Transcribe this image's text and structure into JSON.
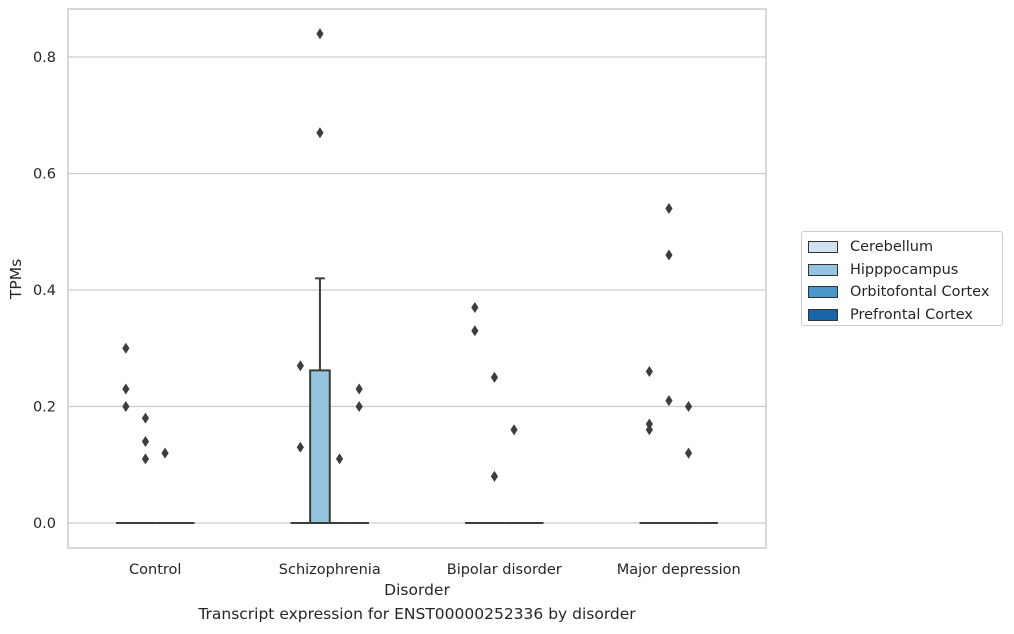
{
  "chart_data": {
    "type": "box",
    "title": "Transcript expression for ENST00000252336 by disorder",
    "xlabel": "Disorder",
    "ylabel": "TPMs",
    "ylim": [
      -0.04,
      0.885
    ],
    "yticks": [
      "0.0",
      "0.2",
      "0.4",
      "0.6",
      "0.8"
    ],
    "ytick_values": [
      0.0,
      0.2,
      0.4,
      0.6,
      0.8
    ],
    "categories": [
      "Control",
      "Schizophrenia",
      "Bipolar disorder",
      "Major depression"
    ],
    "grid": "horizontal",
    "legend_position": "right",
    "series": [
      {
        "name": "Cerebellum",
        "color": "#d0e1f2"
      },
      {
        "name": "Hipppocampus",
        "color": "#94c4df"
      },
      {
        "name": "Orbitofontal Cortex",
        "color": "#4a98c9"
      },
      {
        "name": "Prefrontal Cortex",
        "color": "#1764ab"
      }
    ],
    "boxes": [
      {
        "category": "Control",
        "series": "Cerebellum",
        "q1": 0,
        "median": 0,
        "q3": 0,
        "whisker_low": 0,
        "whisker_high": 0,
        "outliers": [
          0.3,
          0.23,
          0.2
        ]
      },
      {
        "category": "Control",
        "series": "Hipppocampus",
        "q1": 0,
        "median": 0,
        "q3": 0,
        "whisker_low": 0,
        "whisker_high": 0,
        "outliers": [
          0.18,
          0.14,
          0.11
        ]
      },
      {
        "category": "Control",
        "series": "Orbitofontal Cortex",
        "q1": 0,
        "median": 0,
        "q3": 0,
        "whisker_low": 0,
        "whisker_high": 0,
        "outliers": [
          0.12
        ]
      },
      {
        "category": "Control",
        "series": "Prefrontal Cortex",
        "q1": 0,
        "median": 0,
        "q3": 0,
        "whisker_low": 0,
        "whisker_high": 0,
        "outliers": []
      },
      {
        "category": "Schizophrenia",
        "series": "Cerebellum",
        "q1": 0,
        "median": 0,
        "q3": 0,
        "whisker_low": 0,
        "whisker_high": 0,
        "outliers": [
          0.27,
          0.13
        ]
      },
      {
        "category": "Schizophrenia",
        "series": "Hipppocampus",
        "q1": 0,
        "median": 0,
        "q3": 0.262,
        "whisker_low": 0,
        "whisker_high": 0.42,
        "outliers": [
          0.84,
          0.67
        ]
      },
      {
        "category": "Schizophrenia",
        "series": "Orbitofontal Cortex",
        "q1": 0,
        "median": 0,
        "q3": 0,
        "whisker_low": 0,
        "whisker_high": 0,
        "outliers": [
          0.11
        ]
      },
      {
        "category": "Schizophrenia",
        "series": "Prefrontal Cortex",
        "q1": 0,
        "median": 0,
        "q3": 0,
        "whisker_low": 0,
        "whisker_high": 0,
        "outliers": [
          0.23,
          0.2
        ]
      },
      {
        "category": "Bipolar disorder",
        "series": "Cerebellum",
        "q1": 0,
        "median": 0,
        "q3": 0,
        "whisker_low": 0,
        "whisker_high": 0,
        "outliers": [
          0.37,
          0.33
        ]
      },
      {
        "category": "Bipolar disorder",
        "series": "Hipppocampus",
        "q1": 0,
        "median": 0,
        "q3": 0,
        "whisker_low": 0,
        "whisker_high": 0,
        "outliers": [
          0.25,
          0.08
        ]
      },
      {
        "category": "Bipolar disorder",
        "series": "Orbitofontal Cortex",
        "q1": 0,
        "median": 0,
        "q3": 0,
        "whisker_low": 0,
        "whisker_high": 0,
        "outliers": [
          0.16
        ]
      },
      {
        "category": "Bipolar disorder",
        "series": "Prefrontal Cortex",
        "q1": 0,
        "median": 0,
        "q3": 0,
        "whisker_low": 0,
        "whisker_high": 0,
        "outliers": []
      },
      {
        "category": "Major depression",
        "series": "Cerebellum",
        "q1": 0,
        "median": 0,
        "q3": 0,
        "whisker_low": 0,
        "whisker_high": 0,
        "outliers": [
          0.26,
          0.17,
          0.16
        ]
      },
      {
        "category": "Major depression",
        "series": "Hipppocampus",
        "q1": 0,
        "median": 0,
        "q3": 0,
        "whisker_low": 0,
        "whisker_high": 0,
        "outliers": [
          0.54,
          0.46,
          0.21
        ]
      },
      {
        "category": "Major depression",
        "series": "Orbitofontal Cortex",
        "q1": 0,
        "median": 0,
        "q3": 0,
        "whisker_low": 0,
        "whisker_high": 0,
        "outliers": [
          0.2,
          0.12
        ]
      },
      {
        "category": "Major depression",
        "series": "Prefrontal Cortex",
        "q1": 0,
        "median": 0,
        "q3": 0,
        "whisker_low": 0,
        "whisker_high": 0,
        "outliers": []
      }
    ]
  }
}
